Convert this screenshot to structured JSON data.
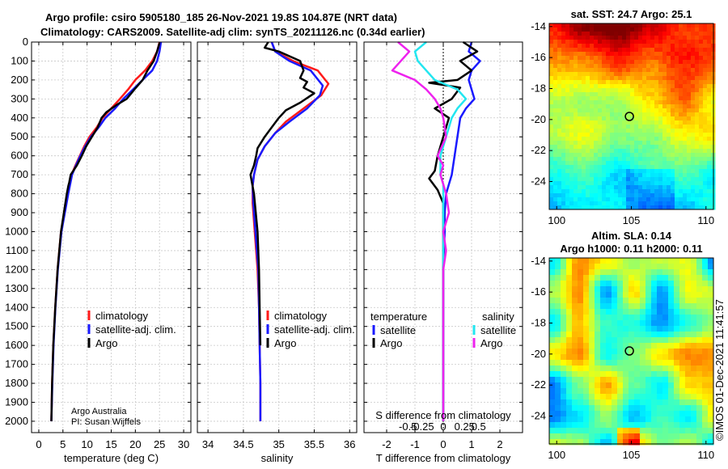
{
  "header": {
    "line1": "Argo profile: csiro 5905180_185 26-Nov-2021 19.8S 104.87E (NRT data)",
    "line2": "Climatology: CARS2009. Satellite-adj clim: synTS_20211126.nc (0.34d earlier)"
  },
  "colors": {
    "red": "#ff1a1a",
    "blue": "#1a1aff",
    "black": "#000000",
    "cyan": "#22e6f0",
    "magenta": "#ee22ee"
  },
  "chart_data": [
    {
      "type": "line",
      "id": "temperature",
      "xlabel": "temperature (deg C)",
      "xlim": [
        -1.5,
        31.5
      ],
      "xticks": [
        0,
        5,
        10,
        15,
        20,
        25,
        30
      ],
      "ylim": [
        2060,
        0
      ],
      "yticks": [
        0,
        100,
        200,
        300,
        400,
        500,
        600,
        700,
        800,
        900,
        1000,
        1100,
        1200,
        1300,
        1400,
        1500,
        1600,
        1700,
        1800,
        1900,
        2000
      ],
      "legend": [
        {
          "label": "climatology",
          "color": "red"
        },
        {
          "label": "satellite-adj. clim.",
          "color": "blue"
        },
        {
          "label": "Argo",
          "color": "black"
        }
      ],
      "annotation": [
        "Argo Australia",
        "PI: Susan Wijffels"
      ],
      "series": [
        {
          "name": "climatology",
          "color": "red",
          "x": [
            25.0,
            24.5,
            23.5,
            22.0,
            20.0,
            18.5,
            16.8,
            15.0,
            13.2,
            12.0,
            10.5,
            9.4,
            8.5,
            7.6,
            6.8,
            6.0,
            4.6,
            3.9,
            3.4,
            3.0,
            2.75,
            2.6
          ],
          "y": [
            0,
            50,
            100,
            150,
            200,
            250,
            300,
            350,
            400,
            450,
            500,
            550,
            600,
            650,
            700,
            800,
            1000,
            1200,
            1400,
            1600,
            1800,
            2000
          ]
        },
        {
          "name": "satellite-adj. clim.",
          "color": "blue",
          "x": [
            25.3,
            25.0,
            24.5,
            23.5,
            21.5,
            19.5,
            17.5,
            15.8,
            13.8,
            12.4,
            10.8,
            9.6,
            8.6,
            7.7,
            6.9,
            6.1,
            4.7,
            3.95,
            3.45,
            3.05,
            2.8,
            2.6
          ],
          "y": [
            0,
            50,
            100,
            150,
            200,
            250,
            300,
            350,
            400,
            450,
            500,
            550,
            600,
            650,
            700,
            800,
            1000,
            1200,
            1400,
            1600,
            1800,
            2000
          ]
        },
        {
          "name": "Argo",
          "color": "black",
          "x": [
            25.0,
            24.5,
            23.8,
            22.5,
            21.5,
            19.8,
            18.2,
            16.2,
            14.0,
            13.0,
            12.2,
            11.0,
            9.8,
            8.9,
            7.9,
            6.6,
            6.3,
            6.1,
            5.8,
            4.6,
            3.9,
            3.4,
            3.0,
            2.75,
            2.6
          ],
          "y": [
            5,
            50,
            100,
            150,
            200,
            250,
            300,
            330,
            370,
            400,
            450,
            500,
            550,
            600,
            650,
            700,
            740,
            760,
            800,
            1000,
            1200,
            1400,
            1600,
            1800,
            2000
          ]
        }
      ]
    },
    {
      "type": "line",
      "id": "salinity",
      "xlabel": "salinity",
      "xlim": [
        33.85,
        36.1
      ],
      "xticks": [
        34,
        34.5,
        35,
        35.5,
        36
      ],
      "xticklabels": [
        "34",
        "34.5",
        "35",
        "35.5",
        "36"
      ],
      "ylim": [
        2060,
        0
      ],
      "legend": [
        {
          "label": "climatology",
          "color": "red"
        },
        {
          "label": "satellite-adj. clim.",
          "color": "blue"
        },
        {
          "label": "Argo",
          "color": "black"
        }
      ],
      "series": [
        {
          "name": "climatology",
          "color": "red",
          "x": [
            34.9,
            34.95,
            35.2,
            35.55,
            35.7,
            35.6,
            35.35,
            35.1,
            34.95,
            34.8,
            34.7,
            34.65,
            34.63,
            34.63,
            34.66,
            34.7,
            34.72,
            34.73,
            34.74,
            34.74
          ],
          "y": [
            0,
            50,
            100,
            150,
            220,
            280,
            350,
            420,
            480,
            550,
            620,
            700,
            760,
            850,
            1000,
            1200,
            1400,
            1600,
            1800,
            2000
          ]
        },
        {
          "name": "satellite-adj. clim.",
          "color": "blue",
          "x": [
            34.9,
            34.95,
            35.15,
            35.45,
            35.62,
            35.58,
            35.4,
            35.15,
            34.95,
            34.8,
            34.7,
            34.65,
            34.63,
            34.64,
            34.67,
            34.71,
            34.72,
            34.73,
            34.74,
            34.74
          ],
          "y": [
            0,
            50,
            100,
            150,
            230,
            280,
            350,
            420,
            480,
            550,
            620,
            700,
            760,
            850,
            1000,
            1200,
            1400,
            1600,
            1800,
            2000
          ]
        },
        {
          "name": "Argo",
          "color": "black",
          "x": [
            34.85,
            34.8,
            35.0,
            35.3,
            35.35,
            35.3,
            35.4,
            35.35,
            35.5,
            35.3,
            35.1,
            35.0,
            34.9,
            34.8,
            34.7,
            34.68,
            34.65,
            34.6,
            34.62,
            34.65,
            34.7,
            34.72,
            34.73,
            34.74
          ],
          "y": [
            0,
            30,
            50,
            100,
            150,
            190,
            210,
            240,
            270,
            320,
            360,
            400,
            450,
            500,
            560,
            600,
            650,
            700,
            740,
            800,
            1000,
            1200,
            1400,
            1600
          ]
        }
      ]
    },
    {
      "type": "line",
      "id": "difference",
      "xlabel": "T difference from climatology",
      "xlabel2": "S difference from climatology",
      "xlim": [
        -2.8,
        2.8
      ],
      "xticks": [
        -2,
        -1,
        0,
        1,
        2
      ],
      "xticklabels": [
        "-2",
        "-1",
        "0",
        "1",
        "2"
      ],
      "sticks": [
        -1.25,
        -0.75,
        0.0,
        0.75,
        1.25
      ],
      "sticklabels": [
        "-0.5",
        "-0.25",
        "0",
        "0.25",
        "0.5"
      ],
      "ylim": [
        2060,
        0
      ],
      "legend_left_title": "temperature",
      "legend_right_title": "salinity",
      "legend": [
        {
          "label": "satellite",
          "color": "blue"
        },
        {
          "label": "Argo",
          "color": "black"
        },
        {
          "label": "satellite",
          "color": "cyan"
        },
        {
          "label": "Argo",
          "color": "magenta"
        }
      ],
      "series": [
        {
          "name": "T satellite",
          "color": "blue",
          "x": [
            1.0,
            0.9,
            1.3,
            1.0,
            0.9,
            1.0,
            1.1,
            0.8,
            0.6,
            0.5,
            0.4,
            0.3,
            0.2,
            0.1,
            0.05,
            0.05,
            0.0,
            0.0,
            0.0,
            0.0
          ],
          "y": [
            0,
            50,
            100,
            150,
            200,
            250,
            300,
            350,
            400,
            500,
            600,
            700,
            750,
            800,
            900,
            1000,
            1200,
            1400,
            1700,
            2000
          ]
        },
        {
          "name": "T Argo",
          "color": "black",
          "x": [
            0.7,
            1.2,
            0.6,
            1.0,
            0.5,
            -0.5,
            0.6,
            0.3,
            -0.3,
            0.2,
            0.0,
            -0.2,
            -0.3,
            -0.5,
            -0.2,
            0.0,
            0.0,
            0.0,
            0.0,
            0.0
          ],
          "y": [
            0,
            50,
            100,
            150,
            200,
            215,
            240,
            300,
            350,
            400,
            500,
            600,
            680,
            720,
            780,
            850,
            1000,
            1200,
            1500,
            2000
          ]
        },
        {
          "name": "S satellite",
          "color": "cyan",
          "x": [
            -0.6,
            -1.0,
            -0.9,
            -0.6,
            -0.3,
            0.5,
            0.8,
            0.5,
            0.3,
            0.1,
            -0.1,
            -0.1,
            0.0,
            0.0,
            0.0,
            0.0,
            0.0,
            0.0,
            0.0,
            0.0
          ],
          "y": [
            0,
            50,
            100,
            150,
            200,
            250,
            300,
            350,
            400,
            500,
            600,
            700,
            750,
            800,
            900,
            1000,
            1200,
            1400,
            1700,
            2000
          ]
        },
        {
          "name": "S Argo",
          "color": "magenta",
          "x": [
            -1.6,
            -1.2,
            -1.5,
            -1.8,
            -1.0,
            -0.6,
            -0.3,
            -0.1,
            0.0,
            0.1,
            -0.2,
            0.0,
            -0.1,
            0.1,
            0.2,
            0.0,
            0.1,
            0.0,
            0.0,
            0.0,
            0.0,
            0.0
          ],
          "y": [
            0,
            50,
            100,
            150,
            200,
            250,
            300,
            350,
            400,
            500,
            600,
            650,
            700,
            800,
            900,
            1000,
            1100,
            1200,
            1300,
            1400,
            1700,
            2000
          ]
        }
      ]
    },
    {
      "type": "heatmap",
      "id": "sst_map",
      "title": "sat. SST: 24.7 Argo: 25.1",
      "xlim": [
        99.5,
        110.5
      ],
      "ylim": [
        -25.8,
        -13.8
      ],
      "xticks": [
        100,
        105,
        110
      ],
      "yticks": [
        -14,
        -16,
        -18,
        -20,
        -22,
        -24
      ],
      "marker": {
        "lon": 104.87,
        "lat": -19.8
      }
    },
    {
      "type": "heatmap",
      "id": "sla_map",
      "title": "Altim. SLA: 0.14",
      "subtitle": "Argo h1000: 0.11 h2000: 0.11",
      "xlim": [
        99.5,
        110.5
      ],
      "ylim": [
        -25.8,
        -13.8
      ],
      "xticks": [
        100,
        105,
        110
      ],
      "yticks": [
        -14,
        -16,
        -18,
        -20,
        -22,
        -24
      ],
      "marker": {
        "lon": 104.87,
        "lat": -19.8
      }
    }
  ],
  "credit": "©IMOS 01-Dec-2021 11:41:57"
}
